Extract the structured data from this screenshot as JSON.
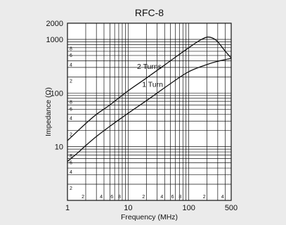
{
  "chart_data": {
    "type": "line",
    "title": "RFC-8",
    "xlabel": "Frequency (MHz)",
    "ylabel": "Impedance (Ω)",
    "x_scale": "log",
    "y_scale": "log",
    "xlim": [
      1,
      500
    ],
    "ylim": [
      1,
      2000
    ],
    "grid": true,
    "x_major_tick_labels": [
      {
        "value": 1,
        "label": "1"
      },
      {
        "value": 10,
        "label": "10"
      },
      {
        "value": 100,
        "label": "100"
      },
      {
        "value": 500,
        "label": "500"
      }
    ],
    "x_minor_tick_labels": [
      {
        "value": 2,
        "label": "2"
      },
      {
        "value": 4,
        "label": "4"
      },
      {
        "value": 6,
        "label": "6"
      },
      {
        "value": 8,
        "label": "8"
      },
      {
        "value": 20,
        "label": "2"
      },
      {
        "value": 40,
        "label": "4"
      },
      {
        "value": 60,
        "label": "6"
      },
      {
        "value": 80,
        "label": "8"
      },
      {
        "value": 200,
        "label": "2"
      },
      {
        "value": 400,
        "label": "4"
      }
    ],
    "y_major_tick_labels": [
      {
        "value": 10,
        "label": "10"
      },
      {
        "value": 100,
        "label": "100"
      },
      {
        "value": 1000,
        "label": "1000"
      },
      {
        "value": 2000,
        "label": "2000"
      }
    ],
    "y_minor_tick_labels": [
      {
        "value": 2,
        "label": "2"
      },
      {
        "value": 4,
        "label": "4"
      },
      {
        "value": 6,
        "label": "6"
      },
      {
        "value": 8,
        "label": "8"
      },
      {
        "value": 20,
        "label": "2"
      },
      {
        "value": 40,
        "label": "4"
      },
      {
        "value": 60,
        "label": "6"
      },
      {
        "value": 80,
        "label": "8"
      },
      {
        "value": 200,
        "label": "2"
      },
      {
        "value": 400,
        "label": "4"
      },
      {
        "value": 600,
        "label": "6"
      },
      {
        "value": 800,
        "label": "8"
      }
    ],
    "series": [
      {
        "name": "2 Turns",
        "x": [
          1,
          1.5,
          2,
          3,
          5,
          10,
          20,
          50,
          100,
          150,
          200,
          250,
          300,
          400,
          500
        ],
        "y": [
          13,
          20,
          27,
          40,
          60,
          110,
          190,
          400,
          700,
          950,
          1100,
          1050,
          900,
          600,
          450
        ]
      },
      {
        "name": "1 Turn",
        "x": [
          1,
          1.5,
          2,
          3,
          5,
          10,
          20,
          50,
          100,
          200,
          300,
          400,
          500
        ],
        "y": [
          5.3,
          7.8,
          10.5,
          15.5,
          24,
          42,
          72,
          150,
          250,
          340,
          390,
          420,
          440
        ]
      }
    ],
    "annotations": [
      {
        "text": "2 Turns",
        "x": 14,
        "y": 280
      },
      {
        "text": "1 Turn",
        "x": 17,
        "y": 130
      }
    ]
  }
}
